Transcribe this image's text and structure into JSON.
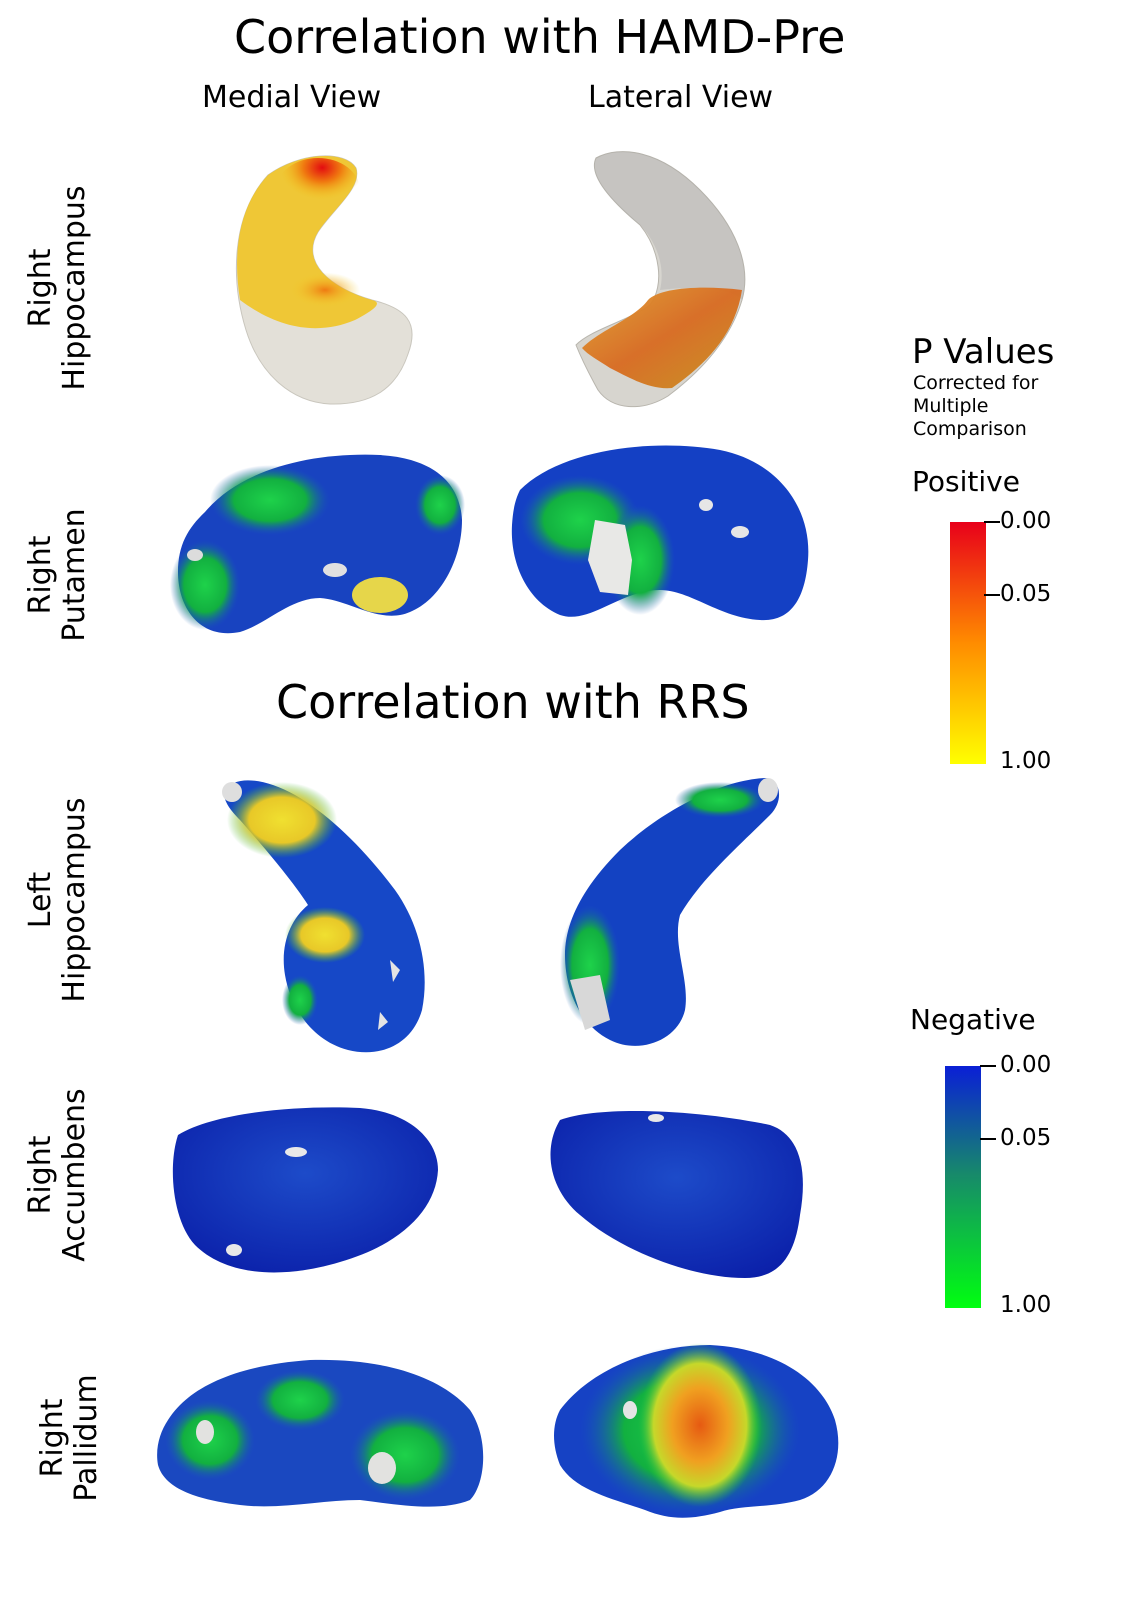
{
  "titles": {
    "top": "Correlation with HAMD-Pre",
    "bottom": "Correlation with RRS"
  },
  "views": {
    "medial": "Medial View",
    "lateral": "Lateral View"
  },
  "rows": [
    {
      "line1": "Right",
      "line2": "Hippocampus"
    },
    {
      "line1": "Right",
      "line2": "Putamen"
    },
    {
      "line1": "Left",
      "line2": "Hippocampus"
    },
    {
      "line1": "Right",
      "line2": "Accumbens"
    },
    {
      "line1": "Right",
      "line2": "Pallidum"
    }
  ],
  "legend": {
    "heading": "P Values",
    "subtitle": [
      "Corrected for",
      "Multiple",
      "Comparison"
    ],
    "positive": {
      "label": "Positive",
      "ticks": [
        "0.00",
        "0.05",
        "1.00"
      ],
      "colors": {
        "top": "#e8001a",
        "mid": "#ff8c00",
        "bottom": "#ffff00"
      }
    },
    "negative": {
      "label": "Negative",
      "ticks": [
        "0.00",
        "0.05",
        "1.00"
      ],
      "colors": {
        "top": "#0a1fd6",
        "mid": "#178a6a",
        "bottom": "#00ff10"
      }
    }
  }
}
